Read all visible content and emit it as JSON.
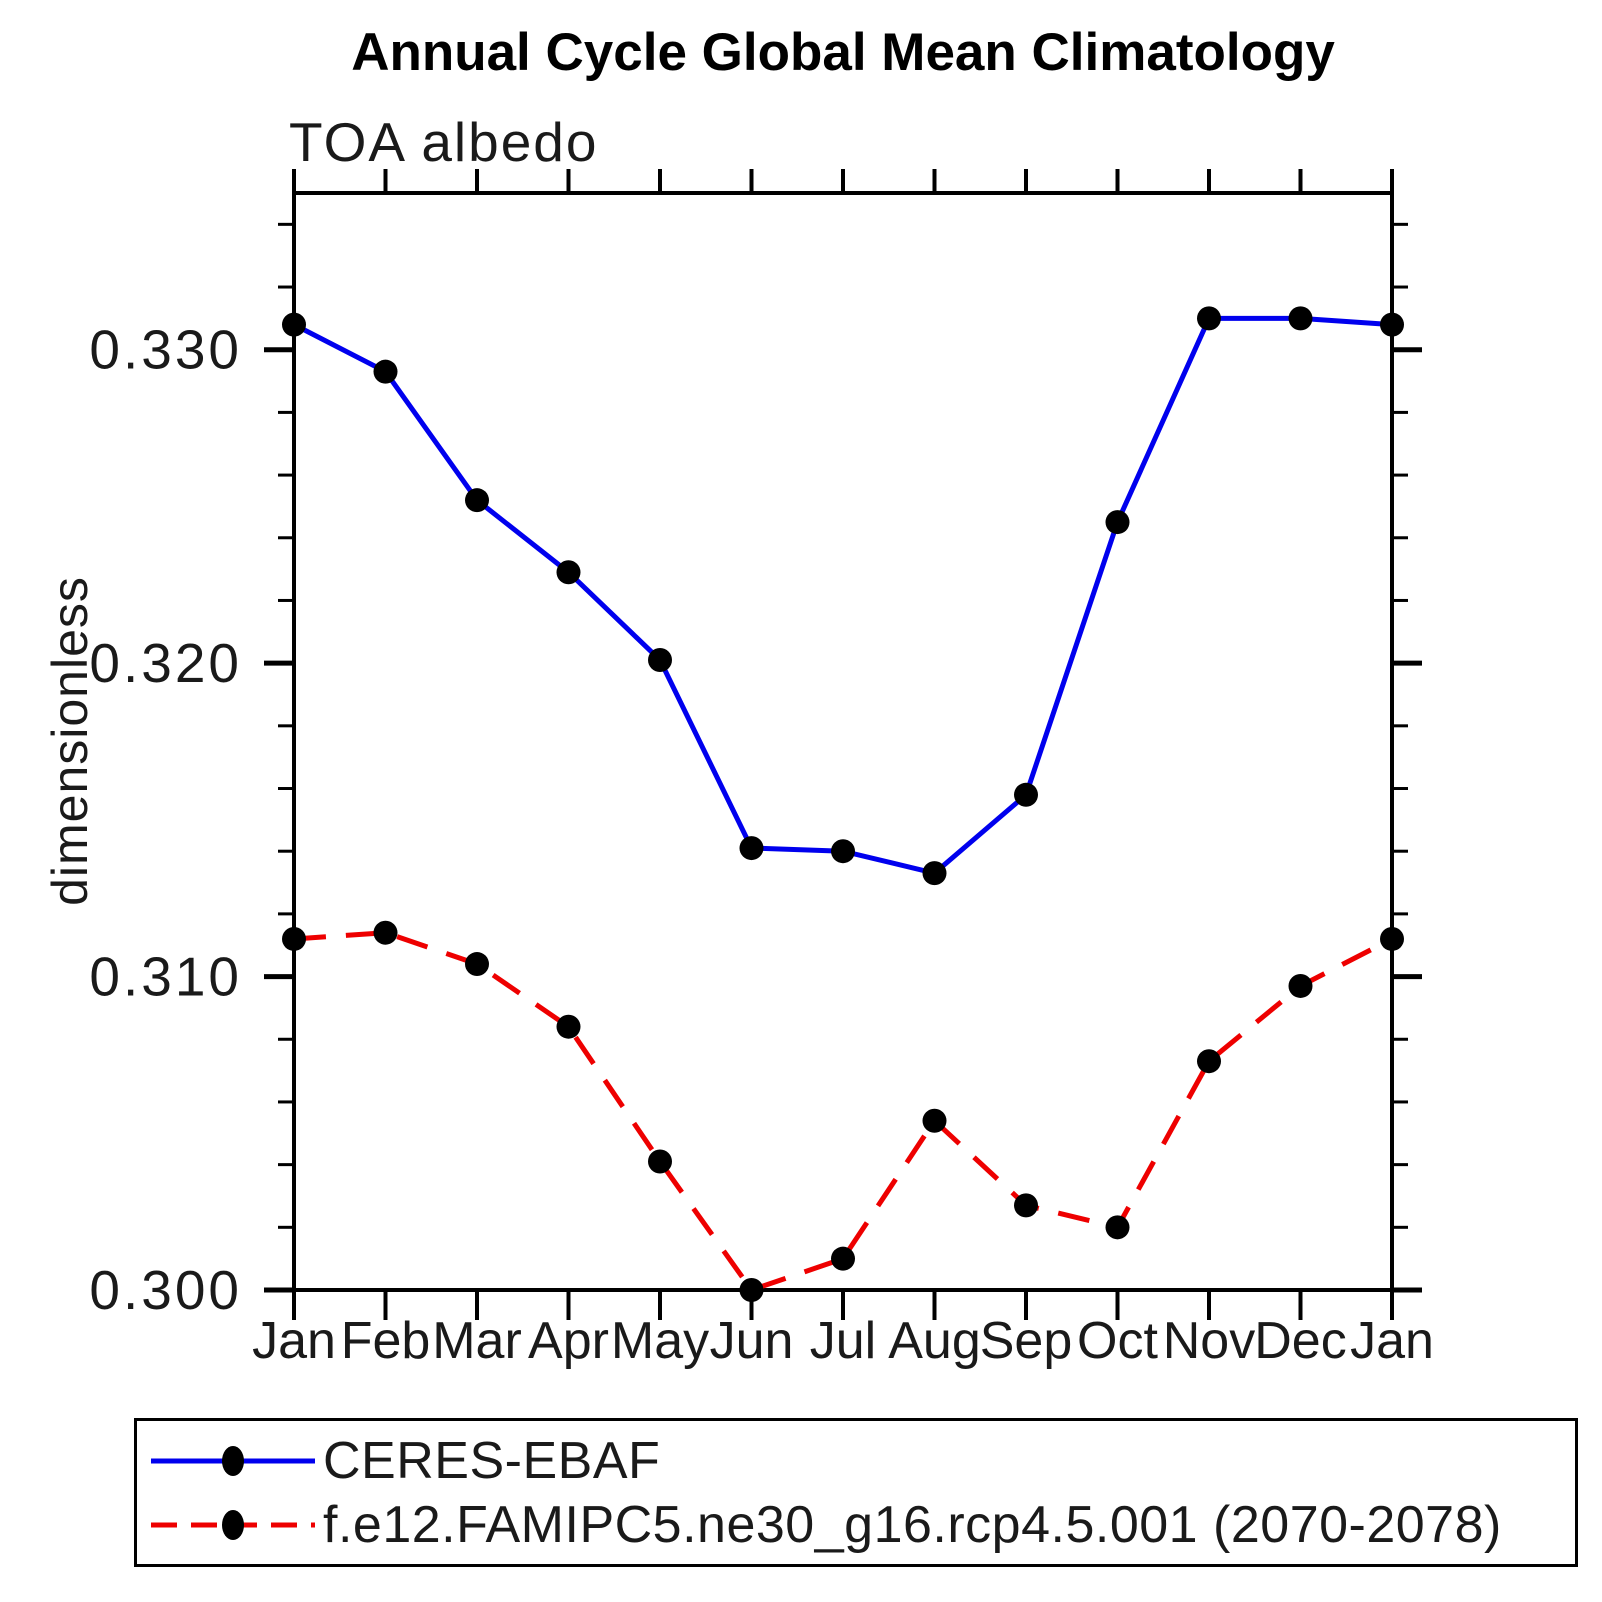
{
  "chart_data": {
    "type": "line",
    "title": "Annual Cycle Global Mean Climatology",
    "subtitle": "TOA albedo",
    "ylabel": "dimensionless",
    "xlabel": "",
    "categories": [
      "Jan",
      "Feb",
      "Mar",
      "Apr",
      "May",
      "Jun",
      "Jul",
      "Aug",
      "Sep",
      "Oct",
      "Nov",
      "Dec",
      "Jan"
    ],
    "ylim": [
      0.3,
      0.335
    ],
    "ytick_major": [
      0.3,
      0.31,
      0.32,
      0.33
    ],
    "ytick_labels": [
      "0.300",
      "0.310",
      "0.320",
      "0.330"
    ],
    "ytick_minor_step": 0.002,
    "grid": false,
    "legend_position": "bottom-left-box",
    "series": [
      {
        "name": "CERES-EBAF",
        "color": "#0000ee",
        "line_style": "solid",
        "marker": "filled-circle",
        "marker_color": "#000000",
        "values": [
          0.3308,
          0.3293,
          0.3252,
          0.3229,
          0.3201,
          0.3141,
          0.314,
          0.3133,
          0.3158,
          0.3245,
          0.331,
          0.331,
          0.3308
        ]
      },
      {
        "name": "f.e12.FAMIPC5.ne30_g16.rcp4.5.001 (2070-2078)",
        "color": "#ee0000",
        "line_style": "dashed",
        "marker": "filled-circle",
        "marker_color": "#000000",
        "values": [
          0.3112,
          0.3114,
          0.3104,
          0.3084,
          0.3041,
          0.3,
          0.301,
          0.3054,
          0.3027,
          0.302,
          0.3073,
          0.3097,
          0.3112
        ]
      }
    ]
  }
}
